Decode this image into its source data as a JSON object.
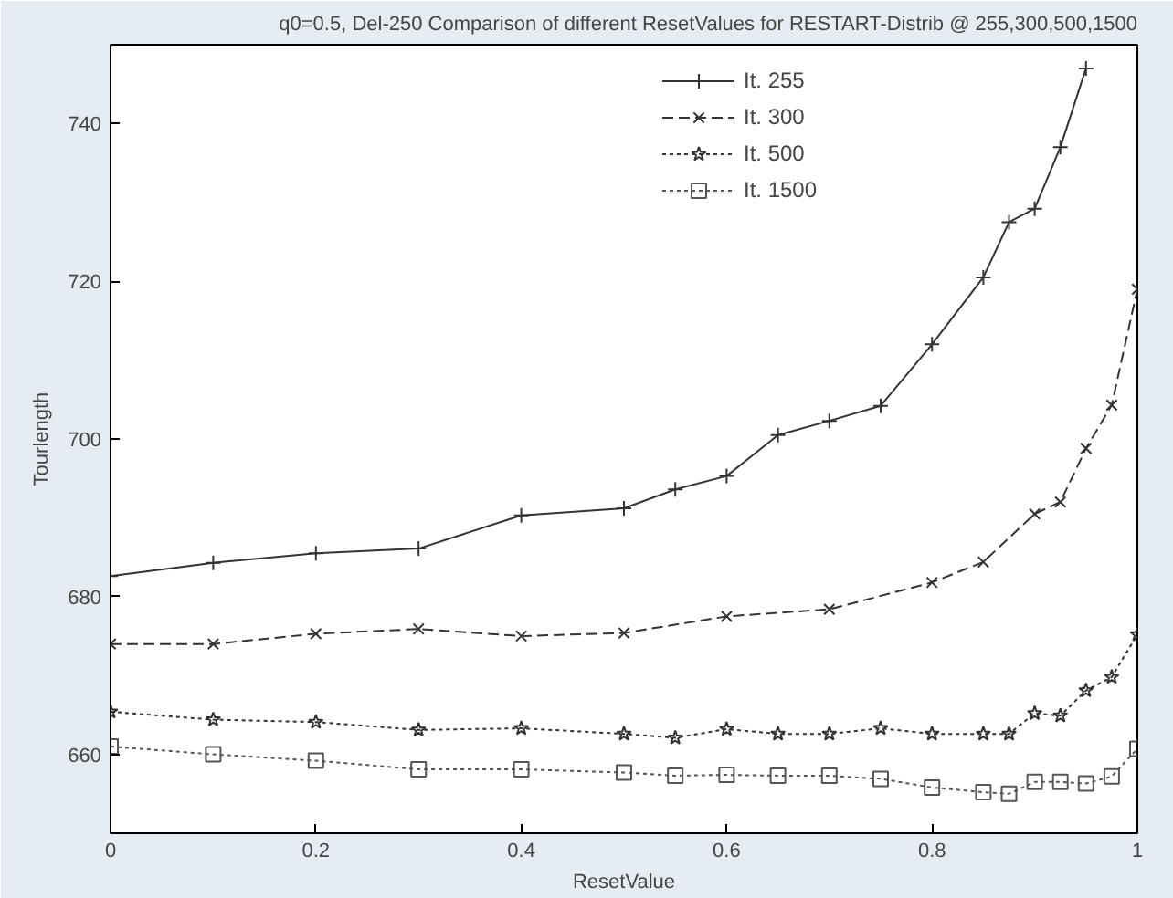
{
  "chart_data": {
    "type": "line",
    "title": "q0=0.5, Del-250 Comparison of different ResetValues for RESTART-Distrib @ 255,300,500,1500",
    "xlabel": "ResetValue",
    "ylabel": "Tourlength",
    "xlim": [
      0,
      1
    ],
    "ylim": [
      650,
      750
    ],
    "xticks": [
      0,
      0.2,
      0.4,
      0.6,
      0.8,
      1
    ],
    "yticks": [
      660,
      680,
      700,
      720,
      740
    ],
    "grid": false,
    "legend": "top right",
    "series": [
      {
        "name": "It. 255",
        "color": "#333333",
        "marker": "plus",
        "line_style": "solid",
        "x": [
          0,
          0.1,
          0.2,
          0.3,
          0.4,
          0.5,
          0.55,
          0.6,
          0.65,
          0.7,
          0.75,
          0.8,
          0.85,
          0.875,
          0.9,
          0.925,
          0.95
        ],
        "values": [
          682.6,
          684.3,
          685.5,
          686.1,
          690.3,
          691.2,
          693.6,
          695.3,
          700.5,
          702.3,
          704.2,
          712,
          720.5,
          727.5,
          729.2,
          737,
          747
        ]
      },
      {
        "name": "It. 300",
        "color": "#333333",
        "marker": "cross",
        "line_style": "dashed",
        "x": [
          0,
          0.1,
          0.2,
          0.3,
          0.4,
          0.5,
          0.6,
          0.7,
          0.8,
          0.85,
          0.9,
          0.925,
          0.95,
          0.975,
          1
        ],
        "values": [
          674,
          674,
          675.3,
          675.9,
          675,
          675.4,
          677.5,
          678.4,
          681.8,
          684.4,
          690.5,
          692,
          698.8,
          704.3,
          719
        ]
      },
      {
        "name": "It. 500",
        "color": "#333333",
        "marker": "star",
        "line_style": "dotted",
        "x": [
          0,
          0.1,
          0.2,
          0.3,
          0.4,
          0.5,
          0.55,
          0.6,
          0.65,
          0.7,
          0.75,
          0.8,
          0.85,
          0.875,
          0.9,
          0.925,
          0.95,
          0.975,
          1
        ],
        "values": [
          665.4,
          664.4,
          664.1,
          663.1,
          663.3,
          662.6,
          662.1,
          663.2,
          662.6,
          662.6,
          663.3,
          662.6,
          662.6,
          662.6,
          665.2,
          664.9,
          668.1,
          669.8,
          675.2
        ]
      },
      {
        "name": "It. 1500",
        "color": "#555555",
        "marker": "square",
        "line_style": "dotted",
        "x": [
          0,
          0.1,
          0.2,
          0.3,
          0.4,
          0.5,
          0.55,
          0.6,
          0.65,
          0.7,
          0.75,
          0.8,
          0.85,
          0.875,
          0.9,
          0.925,
          0.95,
          0.975,
          1
        ],
        "values": [
          661,
          660,
          659.2,
          658.1,
          658.1,
          657.7,
          657.3,
          657.4,
          657.3,
          657.3,
          656.9,
          655.8,
          655.2,
          655,
          656.5,
          656.5,
          656.3,
          657.2,
          660.7
        ]
      }
    ]
  }
}
